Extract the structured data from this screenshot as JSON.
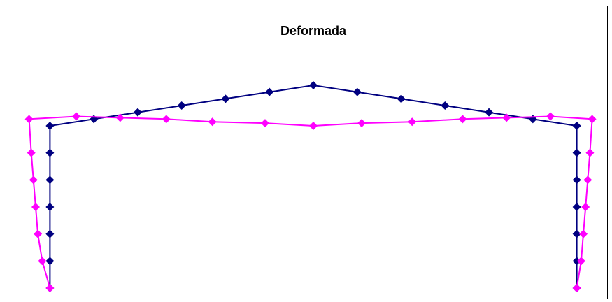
{
  "chart_data": {
    "type": "line",
    "title": "Deformada",
    "xlabel": "",
    "ylabel": "",
    "xlim": [
      -13,
      13
    ],
    "ylim": [
      0,
      7.5
    ],
    "grid": false,
    "legend": "none",
    "series": [
      {
        "color": "#000080",
        "marker": "diamond",
        "points": [
          [
            -12.0,
            0.0
          ],
          [
            -12.0,
            1.0
          ],
          [
            -12.0,
            2.0
          ],
          [
            -12.0,
            3.0
          ],
          [
            -12.0,
            4.0
          ],
          [
            -12.0,
            5.0
          ],
          [
            -12.0,
            6.0
          ],
          [
            -10.0,
            6.25
          ],
          [
            -8.0,
            6.5
          ],
          [
            -6.0,
            6.75
          ],
          [
            -4.0,
            7.0
          ],
          [
            -2.0,
            7.25
          ],
          [
            0.0,
            7.5
          ],
          [
            2.0,
            7.25
          ],
          [
            4.0,
            7.0
          ],
          [
            6.0,
            6.75
          ],
          [
            8.0,
            6.5
          ],
          [
            10.0,
            6.25
          ],
          [
            12.0,
            6.0
          ],
          [
            12.0,
            5.0
          ],
          [
            12.0,
            4.0
          ],
          [
            12.0,
            3.0
          ],
          [
            12.0,
            2.0
          ],
          [
            12.0,
            1.0
          ],
          [
            12.0,
            0.0
          ]
        ]
      },
      {
        "color": "#FF00FF",
        "marker": "diamond",
        "points": [
          [
            -12.0,
            0.0
          ],
          [
            -12.35,
            1.0
          ],
          [
            -12.55,
            2.0
          ],
          [
            -12.65,
            3.0
          ],
          [
            -12.75,
            4.0
          ],
          [
            -12.85,
            5.0
          ],
          [
            -12.95,
            6.25
          ],
          [
            -10.8,
            6.35
          ],
          [
            -8.8,
            6.3
          ],
          [
            -6.7,
            6.25
          ],
          [
            -4.6,
            6.15
          ],
          [
            -2.2,
            6.1
          ],
          [
            0.0,
            6.0
          ],
          [
            2.2,
            6.1
          ],
          [
            4.5,
            6.15
          ],
          [
            6.8,
            6.25
          ],
          [
            8.8,
            6.3
          ],
          [
            10.8,
            6.35
          ],
          [
            12.7,
            6.25
          ],
          [
            12.6,
            5.0
          ],
          [
            12.5,
            4.0
          ],
          [
            12.4,
            3.0
          ],
          [
            12.3,
            2.0
          ],
          [
            12.2,
            1.0
          ],
          [
            12.0,
            0.0
          ]
        ]
      }
    ]
  }
}
